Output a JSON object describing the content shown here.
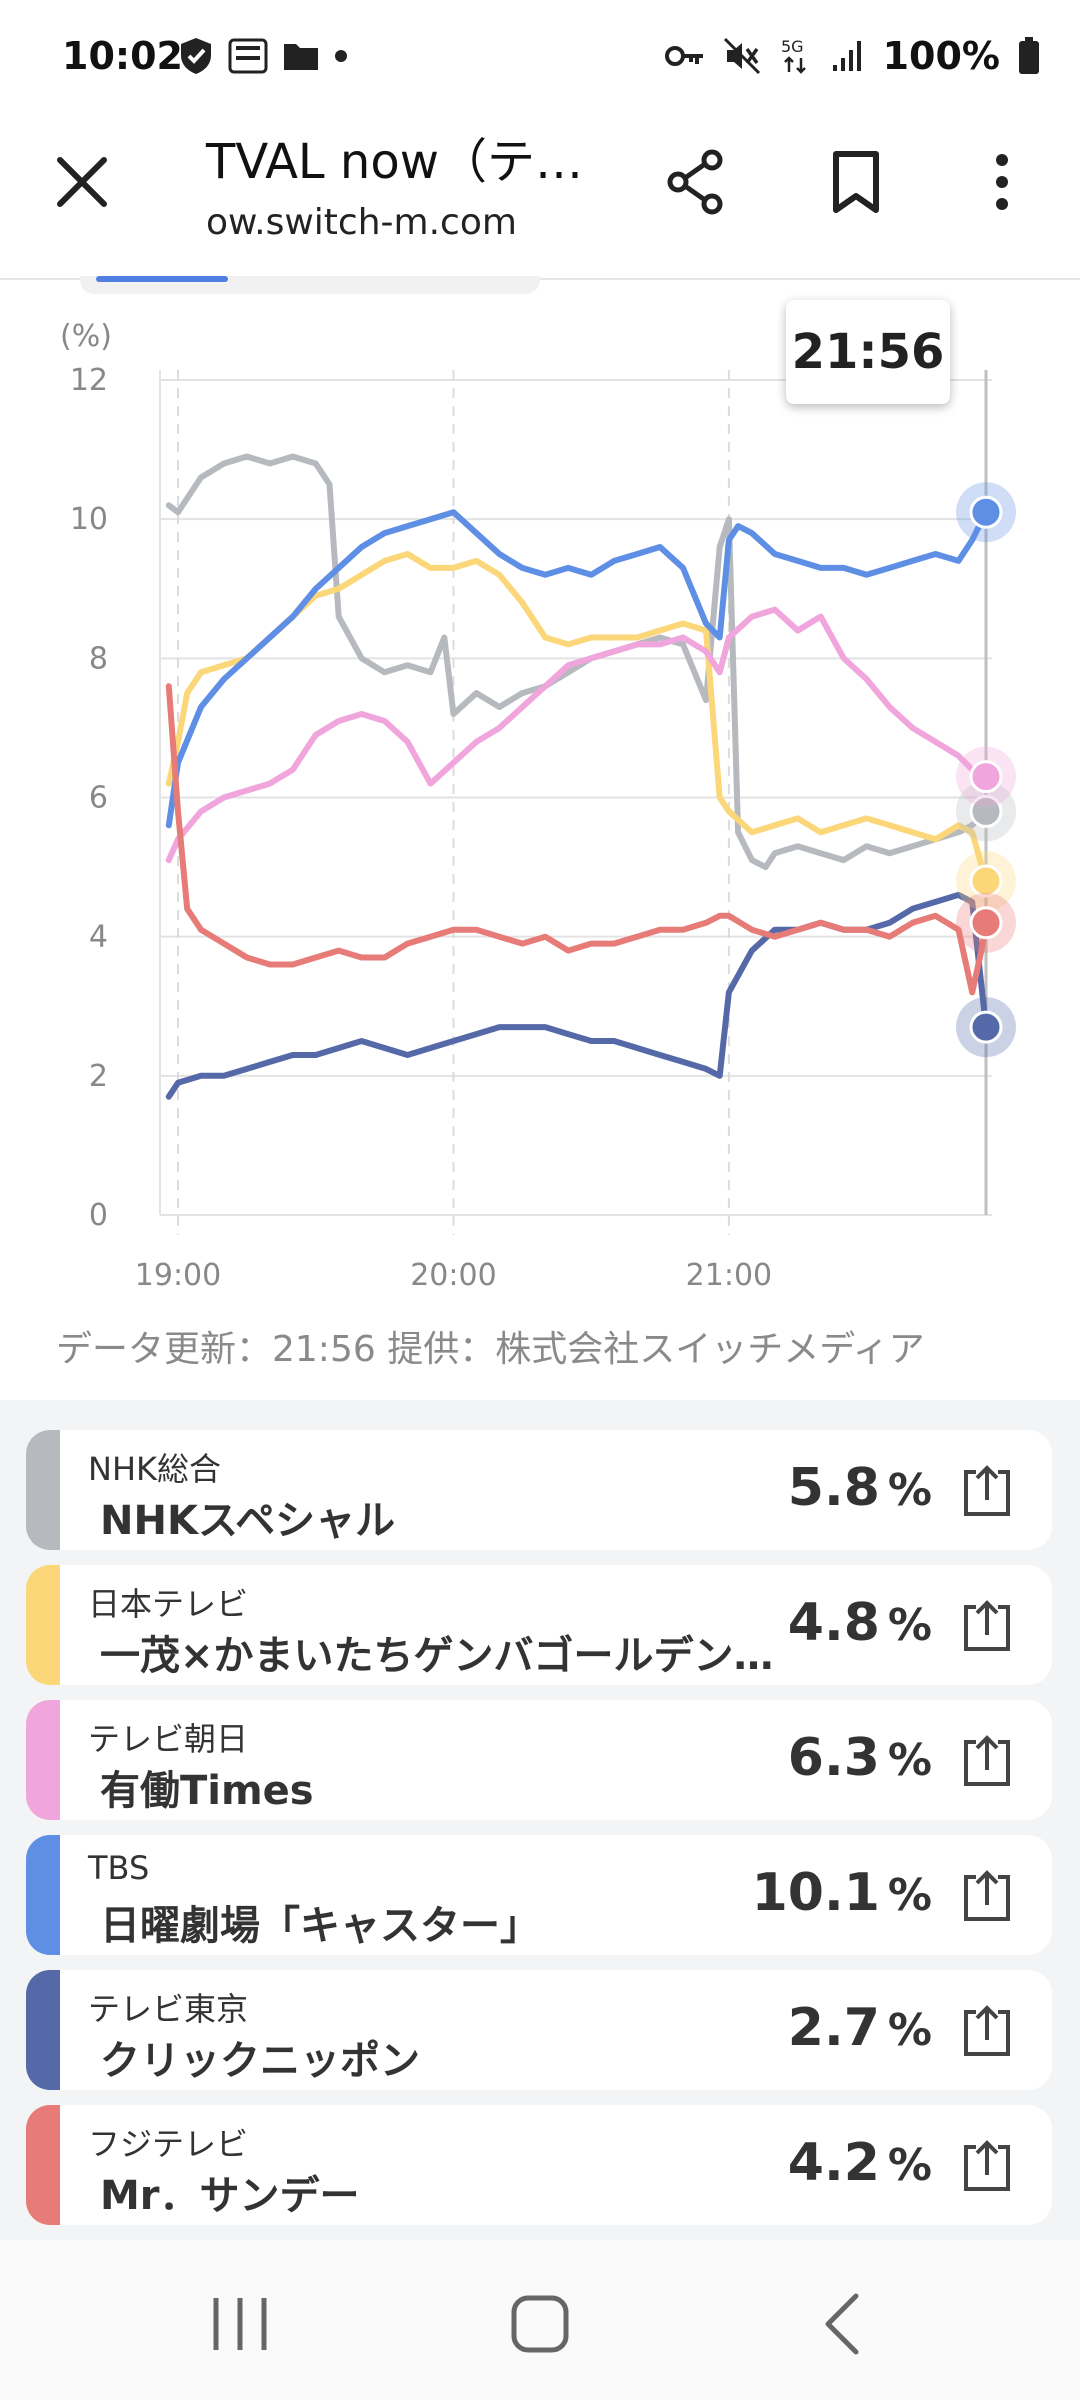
{
  "status_bar": {
    "time": "10:02",
    "left_icons": [
      "shield-icon",
      "manga-app-icon",
      "folder-icon",
      "dot-icon"
    ],
    "right_icons": [
      "key-icon",
      "mute-icon",
      "5g-icon",
      "signal-icon",
      "battery-icon"
    ],
    "network": "5G",
    "battery": "100%"
  },
  "browser": {
    "title": "TVAL now（テ…",
    "url": "ow.switch-m.com",
    "icons": [
      "close-icon",
      "share-icon",
      "bookmark-icon",
      "more-vert-icon"
    ]
  },
  "chart": {
    "tooltip_time": "21:56"
  },
  "chart_data": {
    "type": "line",
    "y_unit": "(%)",
    "ylim": [
      0,
      12
    ],
    "y_ticks": [
      "0",
      "2",
      "4",
      "6",
      "8",
      "10",
      "12"
    ],
    "x_ticks": [
      "19:00",
      "20:00",
      "21:00"
    ],
    "grid": true,
    "series": [
      {
        "name": "NHK総合",
        "color": "#b6b9be",
        "x": [
          "18:58",
          "19:00",
          "19:05",
          "19:10",
          "19:15",
          "19:20",
          "19:25",
          "19:30",
          "19:33",
          "19:35",
          "19:40",
          "19:45",
          "19:50",
          "19:55",
          "19:58",
          "20:00",
          "20:05",
          "20:10",
          "20:15",
          "20:20",
          "20:25",
          "20:30",
          "20:35",
          "20:40",
          "20:45",
          "20:50",
          "20:55",
          "20:58",
          "21:00",
          "21:02",
          "21:05",
          "21:08",
          "21:10",
          "21:15",
          "21:20",
          "21:25",
          "21:30",
          "21:35",
          "21:40",
          "21:45",
          "21:50",
          "21:53",
          "21:56"
        ],
        "y": [
          10.2,
          10.1,
          10.6,
          10.8,
          10.9,
          10.8,
          10.9,
          10.8,
          10.5,
          8.6,
          8.0,
          7.8,
          7.9,
          7.8,
          8.3,
          7.2,
          7.5,
          7.3,
          7.5,
          7.6,
          7.8,
          8.0,
          8.1,
          8.2,
          8.3,
          8.2,
          7.4,
          9.6,
          10.0,
          5.5,
          5.1,
          5.0,
          5.2,
          5.3,
          5.2,
          5.1,
          5.3,
          5.2,
          5.3,
          5.4,
          5.5,
          5.6,
          5.8
        ]
      },
      {
        "name": "日本テレビ",
        "color": "#fbd77a",
        "x": [
          "18:58",
          "19:00",
          "19:02",
          "19:05",
          "19:10",
          "19:15",
          "19:20",
          "19:25",
          "19:30",
          "19:35",
          "19:40",
          "19:45",
          "19:50",
          "19:55",
          "20:00",
          "20:05",
          "20:10",
          "20:15",
          "20:20",
          "20:25",
          "20:30",
          "20:35",
          "20:40",
          "20:45",
          "20:50",
          "20:55",
          "20:58",
          "21:00",
          "21:05",
          "21:10",
          "21:15",
          "21:20",
          "21:25",
          "21:30",
          "21:35",
          "21:40",
          "21:45",
          "21:50",
          "21:53",
          "21:56"
        ],
        "y": [
          6.2,
          6.8,
          7.5,
          7.8,
          7.9,
          8.0,
          8.3,
          8.6,
          8.9,
          9.0,
          9.2,
          9.4,
          9.5,
          9.3,
          9.3,
          9.4,
          9.2,
          8.8,
          8.3,
          8.2,
          8.3,
          8.3,
          8.3,
          8.4,
          8.5,
          8.4,
          6.0,
          5.8,
          5.5,
          5.6,
          5.7,
          5.5,
          5.6,
          5.7,
          5.6,
          5.5,
          5.4,
          5.6,
          5.5,
          4.8
        ]
      },
      {
        "name": "テレビ朝日",
        "color": "#f0a5dc",
        "x": [
          "18:58",
          "19:00",
          "19:05",
          "19:10",
          "19:15",
          "19:20",
          "19:25",
          "19:30",
          "19:35",
          "19:40",
          "19:45",
          "19:50",
          "19:55",
          "20:00",
          "20:05",
          "20:10",
          "20:15",
          "20:20",
          "20:25",
          "20:30",
          "20:35",
          "20:40",
          "20:45",
          "20:50",
          "20:55",
          "20:58",
          "21:00",
          "21:05",
          "21:10",
          "21:15",
          "21:20",
          "21:25",
          "21:30",
          "21:35",
          "21:40",
          "21:45",
          "21:50",
          "21:53",
          "21:56"
        ],
        "y": [
          5.1,
          5.4,
          5.8,
          6.0,
          6.1,
          6.2,
          6.4,
          6.9,
          7.1,
          7.2,
          7.1,
          6.8,
          6.2,
          6.5,
          6.8,
          7.0,
          7.3,
          7.6,
          7.9,
          8.0,
          8.1,
          8.2,
          8.2,
          8.3,
          8.1,
          7.8,
          8.3,
          8.6,
          8.7,
          8.4,
          8.6,
          8.0,
          7.7,
          7.3,
          7.0,
          6.8,
          6.6,
          6.4,
          6.3
        ]
      },
      {
        "name": "TBS",
        "color": "#5f8fe5",
        "x": [
          "18:58",
          "19:00",
          "19:05",
          "19:10",
          "19:15",
          "19:20",
          "19:25",
          "19:30",
          "19:35",
          "19:40",
          "19:45",
          "19:50",
          "19:55",
          "20:00",
          "20:05",
          "20:10",
          "20:15",
          "20:20",
          "20:25",
          "20:30",
          "20:35",
          "20:40",
          "20:45",
          "20:50",
          "20:55",
          "20:58",
          "21:00",
          "21:02",
          "21:05",
          "21:10",
          "21:15",
          "21:20",
          "21:25",
          "21:30",
          "21:35",
          "21:40",
          "21:45",
          "21:50",
          "21:53",
          "21:56"
        ],
        "y": [
          5.6,
          6.5,
          7.3,
          7.7,
          8.0,
          8.3,
          8.6,
          9.0,
          9.3,
          9.6,
          9.8,
          9.9,
          10.0,
          10.1,
          9.8,
          9.5,
          9.3,
          9.2,
          9.3,
          9.2,
          9.4,
          9.5,
          9.6,
          9.3,
          8.5,
          8.3,
          9.7,
          9.9,
          9.8,
          9.5,
          9.4,
          9.3,
          9.3,
          9.2,
          9.3,
          9.4,
          9.5,
          9.4,
          9.7,
          10.1
        ]
      },
      {
        "name": "テレビ東京",
        "color": "#5569a8",
        "x": [
          "18:58",
          "19:00",
          "19:05",
          "19:10",
          "19:15",
          "19:20",
          "19:25",
          "19:30",
          "19:35",
          "19:40",
          "19:45",
          "19:50",
          "19:55",
          "20:00",
          "20:05",
          "20:10",
          "20:15",
          "20:20",
          "20:25",
          "20:30",
          "20:35",
          "20:40",
          "20:45",
          "20:50",
          "20:55",
          "20:58",
          "21:00",
          "21:05",
          "21:10",
          "21:15",
          "21:20",
          "21:25",
          "21:30",
          "21:35",
          "21:40",
          "21:45",
          "21:50",
          "21:53",
          "21:56"
        ],
        "y": [
          1.7,
          1.9,
          2.0,
          2.0,
          2.1,
          2.2,
          2.3,
          2.3,
          2.4,
          2.5,
          2.4,
          2.3,
          2.4,
          2.5,
          2.6,
          2.7,
          2.7,
          2.7,
          2.6,
          2.5,
          2.5,
          2.4,
          2.3,
          2.2,
          2.1,
          2.0,
          3.2,
          3.8,
          4.1,
          4.1,
          4.2,
          4.1,
          4.1,
          4.2,
          4.4,
          4.5,
          4.6,
          4.5,
          2.7
        ]
      },
      {
        "name": "フジテレビ",
        "color": "#e77b78",
        "x": [
          "18:58",
          "19:00",
          "19:02",
          "19:05",
          "19:10",
          "19:15",
          "19:20",
          "19:25",
          "19:30",
          "19:35",
          "19:40",
          "19:45",
          "19:50",
          "19:55",
          "20:00",
          "20:05",
          "20:10",
          "20:15",
          "20:20",
          "20:25",
          "20:30",
          "20:35",
          "20:40",
          "20:45",
          "20:50",
          "20:55",
          "20:58",
          "21:00",
          "21:05",
          "21:10",
          "21:15",
          "21:20",
          "21:25",
          "21:30",
          "21:35",
          "21:40",
          "21:45",
          "21:50",
          "21:53",
          "21:55",
          "21:56"
        ],
        "y": [
          7.6,
          5.8,
          4.4,
          4.1,
          3.9,
          3.7,
          3.6,
          3.6,
          3.7,
          3.8,
          3.7,
          3.7,
          3.9,
          4.0,
          4.1,
          4.1,
          4.0,
          3.9,
          4.0,
          3.8,
          3.9,
          3.9,
          4.0,
          4.1,
          4.1,
          4.2,
          4.3,
          4.3,
          4.1,
          4.0,
          4.1,
          4.2,
          4.1,
          4.1,
          4.0,
          4.2,
          4.3,
          4.1,
          3.2,
          3.8,
          4.2
        ]
      }
    ]
  },
  "credit": "データ更新：21:56  提供：株式会社スイッチメディア",
  "channels": [
    {
      "channel": "NHK総合",
      "program": "NHKスペシャル",
      "rate": "5.8",
      "unit": "%",
      "color": "#b6b9be"
    },
    {
      "channel": "日本テレビ",
      "program": "一茂×かまいたちゲンバゴールデン…",
      "rate": "4.8",
      "unit": "%",
      "color": "#fbd77a"
    },
    {
      "channel": "テレビ朝日",
      "program": "有働Times",
      "rate": "6.3",
      "unit": "%",
      "color": "#f0a5dc"
    },
    {
      "channel": "TBS",
      "program": "日曜劇場「キャスター」",
      "rate": "10.1",
      "unit": "%",
      "color": "#5f8fe5"
    },
    {
      "channel": "テレビ東京",
      "program": "クリックニッポン",
      "rate": "2.7",
      "unit": "%",
      "color": "#5569a8"
    },
    {
      "channel": "フジテレビ",
      "program": "Mr．サンデー",
      "rate": "4.2",
      "unit": "%",
      "color": "#e77b78"
    }
  ],
  "nav": {
    "icons": [
      "recents-icon",
      "home-icon",
      "back-icon"
    ]
  }
}
